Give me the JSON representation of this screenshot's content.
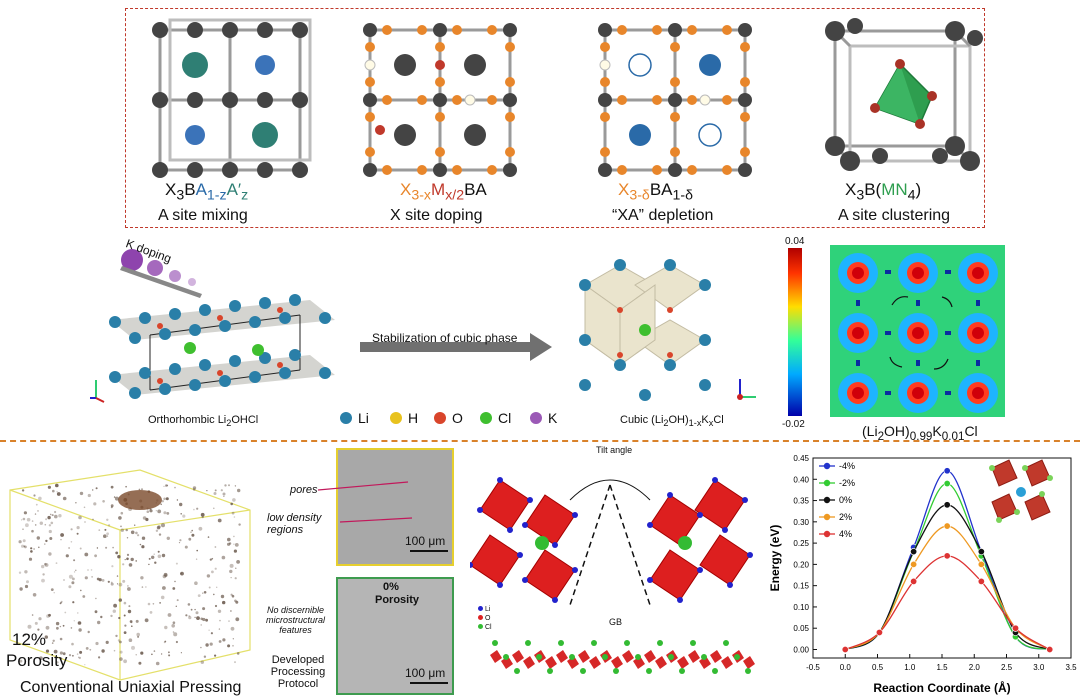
{
  "top_panels": [
    {
      "formula_parts": [
        "X",
        "3",
        "B",
        "A",
        "1-z",
        "A′",
        "z"
      ],
      "caption": "A site mixing"
    },
    {
      "formula_parts": [
        "X",
        "3-x",
        "M",
        "x/2",
        "BA"
      ],
      "caption": "X site doping"
    },
    {
      "formula_parts": [
        "X",
        "3-δ",
        "BA",
        "1-δ"
      ],
      "caption": "“XA” depletion"
    },
    {
      "formula_parts": [
        "X",
        "3",
        "B(",
        "MN",
        "4",
        ")"
      ],
      "caption": "A site clustering"
    }
  ],
  "middle": {
    "k_doping": "K doping",
    "arrow_label": "Stabilization of cubic phase",
    "left_caption_parts": [
      "Orthorhombic Li",
      "2",
      "OHCl"
    ],
    "right_caption_parts": [
      "Cubic (Li",
      "2",
      "OH)",
      "1-x",
      "K",
      "x",
      "Cl"
    ],
    "legend": [
      {
        "label": "Li",
        "color": "#2a7fa8"
      },
      {
        "label": "H",
        "color": "#e8c21e"
      },
      {
        "label": "O",
        "color": "#d9452b"
      },
      {
        "label": "Cl",
        "color": "#3fbf2f"
      },
      {
        "label": "K",
        "color": "#9b59b6"
      }
    ],
    "colorbar_max": "0.04",
    "colorbar_min": "-0.02",
    "map_caption_parts": [
      "(Li",
      "2",
      "OH)",
      "0.99",
      "K",
      "0.01",
      "Cl"
    ]
  },
  "bottom_left": {
    "porosity_value": "12%",
    "porosity_label": "Porosity",
    "method": "Conventional Uniaxial Pressing",
    "pores_label": "pores",
    "low_density_label": "low density regions",
    "scale_bar_top": "100 μm",
    "zero_porosity_value": "0%",
    "zero_porosity_label": "Porosity",
    "no_features": "No discernible microstructural features",
    "developed_protocol": "Developed Processing Protocol",
    "scale_bar_bottom": "100 μm"
  },
  "gb_panel": {
    "tilt_angle": "Tilt angle",
    "gb_label": "GB",
    "legend": [
      {
        "label": "Li",
        "color": "#2222cc"
      },
      {
        "label": "O",
        "color": "#dd2222"
      },
      {
        "label": "Cl",
        "color": "#33bb33"
      }
    ]
  },
  "chart_data": {
    "type": "line",
    "xlabel": "Reaction Coordinate (Å)",
    "ylabel": "Energy (eV)",
    "xlim": [
      -0.5,
      3.5
    ],
    "ylim": [
      -0.02,
      0.45
    ],
    "xticks": [
      "-0.5",
      "0.0",
      "0.5",
      "1.0",
      "1.5",
      "2.0",
      "2.5",
      "3.0",
      "3.5"
    ],
    "yticks": [
      "0.00",
      "0.05",
      "0.10",
      "0.15",
      "0.20",
      "0.25",
      "0.30",
      "0.35",
      "0.40",
      "0.45"
    ],
    "legend_position": "top-left",
    "series": [
      {
        "name": "-4%",
        "color": "#2233cc",
        "x": [
          0.0,
          0.53,
          1.06,
          1.58,
          2.11,
          2.64,
          3.17
        ],
        "y": [
          0.0,
          0.04,
          0.24,
          0.42,
          0.23,
          0.03,
          0.0
        ]
      },
      {
        "name": "-2%",
        "color": "#33cc33",
        "x": [
          0.0,
          0.53,
          1.06,
          1.58,
          2.11,
          2.64,
          3.17
        ],
        "y": [
          0.0,
          0.04,
          0.23,
          0.39,
          0.22,
          0.03,
          0.0
        ]
      },
      {
        "name": "0%",
        "color": "#111111",
        "x": [
          0.0,
          0.53,
          1.06,
          1.58,
          2.11,
          2.64,
          3.17
        ],
        "y": [
          0.0,
          0.04,
          0.23,
          0.34,
          0.23,
          0.04,
          0.0
        ]
      },
      {
        "name": "2%",
        "color": "#ee9922",
        "x": [
          0.0,
          0.53,
          1.06,
          1.58,
          2.11,
          2.64,
          3.17
        ],
        "y": [
          0.0,
          0.04,
          0.2,
          0.29,
          0.2,
          0.05,
          0.0
        ]
      },
      {
        "name": "4%",
        "color": "#dd3333",
        "x": [
          0.0,
          0.53,
          1.06,
          1.58,
          2.11,
          2.64,
          3.17
        ],
        "y": [
          0.0,
          0.04,
          0.16,
          0.22,
          0.16,
          0.05,
          0.0
        ]
      }
    ]
  }
}
